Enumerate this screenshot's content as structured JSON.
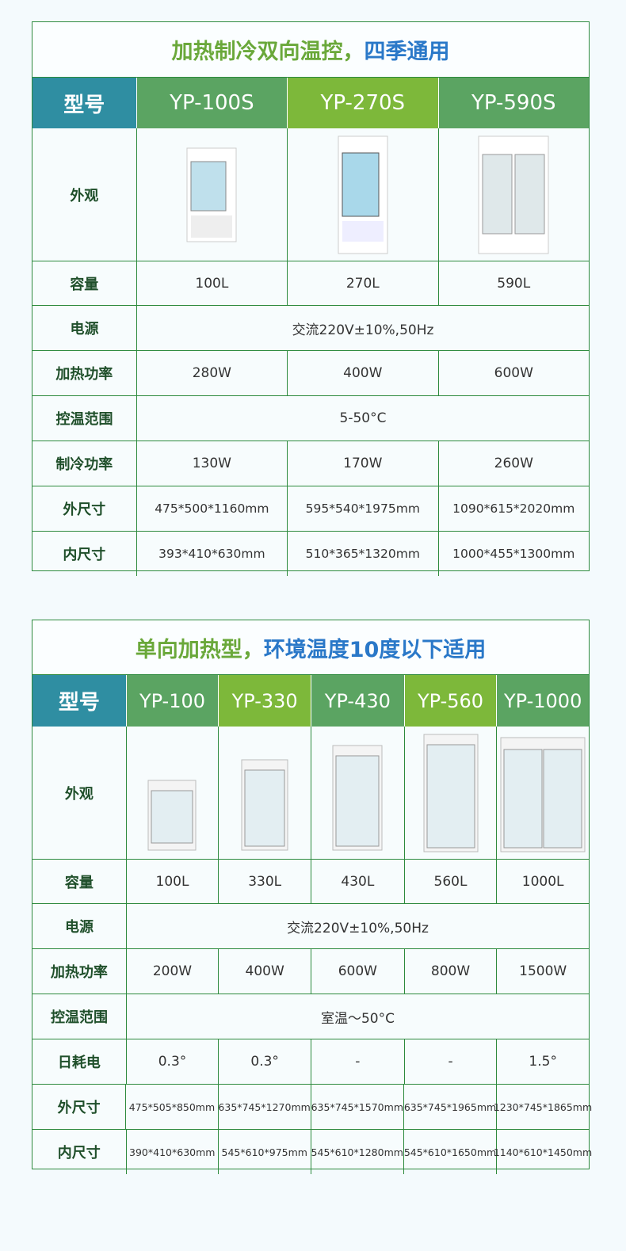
{
  "table1": {
    "title_green": "加热制冷双向温控，",
    "title_blue": "四季通用",
    "header": [
      "型号",
      "YP-100S",
      "YP-270S",
      "YP-590S"
    ],
    "image_label": "外观",
    "images": [
      "fridge-icon",
      "fridge-icon",
      "fridge-icon"
    ],
    "rows": [
      {
        "label": "容量",
        "values": [
          "100L",
          "270L",
          "590L"
        ]
      },
      {
        "label": "电源",
        "merged": "交流220V±10%,50Hz"
      },
      {
        "label": "加热功率",
        "values": [
          "280W",
          "400W",
          "600W"
        ]
      },
      {
        "label": "控温范围",
        "merged": "5-50°C"
      },
      {
        "label": "制冷功率",
        "values": [
          "130W",
          "170W",
          "260W"
        ]
      },
      {
        "label": "外尺寸",
        "values": [
          "475*500*1160mm",
          "595*540*1975mm",
          "1090*615*2020mm"
        ]
      },
      {
        "label": "内尺寸",
        "values": [
          "393*410*630mm",
          "510*365*1320mm",
          "1000*455*1300mm"
        ]
      }
    ]
  },
  "table2": {
    "title_green": "单向加热型，",
    "title_blue": "环境温度10度以下适用",
    "header": [
      "型号",
      "YP-100",
      "YP-330",
      "YP-430",
      "YP-560",
      "YP-1000"
    ],
    "image_label": "外观",
    "rows": [
      {
        "label": "容量",
        "values": [
          "100L",
          "330L",
          "430L",
          "560L",
          "1000L"
        ]
      },
      {
        "label": "电源",
        "merged": "交流220V±10%,50Hz"
      },
      {
        "label": "加热功率",
        "values": [
          "200W",
          "400W",
          "600W",
          "800W",
          "1500W"
        ]
      },
      {
        "label": "控温范围",
        "merged": "室温～50°C"
      },
      {
        "label": "日耗电",
        "values": [
          "0.3°",
          "0.3°",
          "-",
          "-",
          "1.5°"
        ]
      },
      {
        "label": "外尺寸",
        "values": [
          "475*505*850mm",
          "635*745*1270mm",
          "635*745*1570mm",
          "635*745*1965mm",
          "1230*745*1865mm"
        ]
      },
      {
        "label": "内尺寸",
        "values": [
          "390*410*630mm",
          "545*610*975mm",
          "545*610*1280mm",
          "545*610*1650mm",
          "1140*610*1450mm"
        ]
      }
    ]
  },
  "colors": {
    "border": "#2d8a3e",
    "header_label": "#2f8ea2",
    "header_green": "#5ba462",
    "header_lime": "#7db83a",
    "title_green": "#6aa83a",
    "title_blue": "#2a78c8"
  }
}
